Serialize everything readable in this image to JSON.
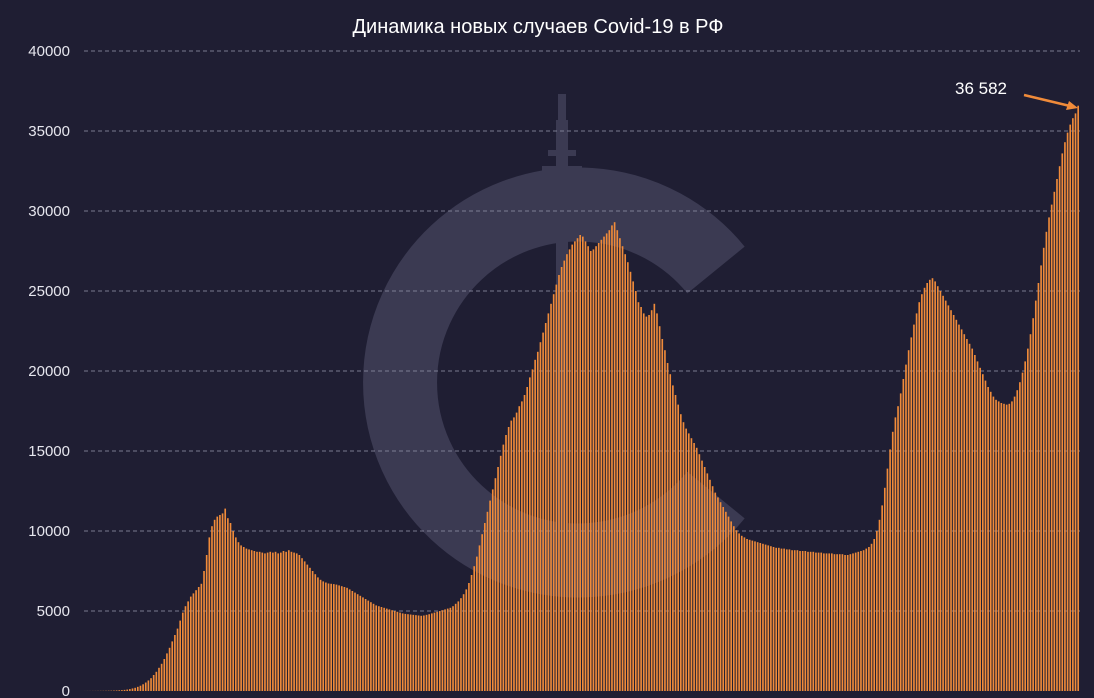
{
  "chart_data": {
    "type": "bar",
    "title": "Динамика новых случаев Covid-19 в РФ",
    "ylim": [
      0,
      40000
    ],
    "y_ticks": [
      "0",
      "5000",
      "10000",
      "15000",
      "20000",
      "25000",
      "30000",
      "35000",
      "40000"
    ],
    "grid": "horizontal-dashed",
    "annotation": {
      "label": "36 582",
      "value": 36582,
      "target": "last"
    },
    "colors": {
      "background": "#1f1e33",
      "bar": "#f08b3a",
      "grid": "#8a8aa0",
      "text": "#ffffff",
      "watermark": "#3b3a52"
    },
    "series": [
      {
        "values": [
          2,
          3,
          4,
          5,
          6,
          8,
          10,
          12,
          15,
          18,
          22,
          28,
          35,
          45,
          55,
          70,
          90,
          120,
          160,
          200,
          260,
          330,
          420,
          530,
          660,
          800,
          1000,
          1200,
          1450,
          1700,
          2000,
          2350,
          2700,
          3100,
          3500,
          3900,
          4400,
          4900,
          5300,
          5600,
          5900,
          6100,
          6300,
          6500,
          6700,
          7500,
          8500,
          9600,
          10300,
          10700,
          10900,
          11000,
          11100,
          11400,
          10800,
          10500,
          10000,
          9600,
          9300,
          9100,
          9000,
          8900,
          8850,
          8800,
          8750,
          8700,
          8700,
          8650,
          8600,
          8650,
          8700,
          8650,
          8700,
          8600,
          8650,
          8750,
          8700,
          8800,
          8700,
          8650,
          8600,
          8500,
          8300,
          8100,
          7900,
          7700,
          7500,
          7300,
          7100,
          6950,
          6850,
          6780,
          6720,
          6700,
          6680,
          6650,
          6600,
          6550,
          6500,
          6450,
          6350,
          6250,
          6150,
          6050,
          5950,
          5850,
          5750,
          5650,
          5550,
          5450,
          5350,
          5300,
          5250,
          5200,
          5150,
          5100,
          5050,
          5000,
          4950,
          4900,
          4850,
          4820,
          4800,
          4780,
          4760,
          4740,
          4720,
          4700,
          4720,
          4760,
          4800,
          4850,
          4900,
          4950,
          5000,
          5050,
          5100,
          5150,
          5200,
          5300,
          5450,
          5600,
          5800,
          6050,
          6350,
          6750,
          7250,
          7800,
          8400,
          9100,
          9800,
          10500,
          11200,
          11900,
          12600,
          13300,
          14000,
          14700,
          15400,
          16000,
          16500,
          16900,
          17100,
          17400,
          17800,
          18100,
          18500,
          19000,
          19600,
          20100,
          20700,
          21200,
          21800,
          22400,
          23000,
          23600,
          24200,
          24800,
          25400,
          26000,
          26500,
          26900,
          27300,
          27600,
          27900,
          28100,
          28300,
          28500,
          28400,
          28100,
          27800,
          27500,
          27600,
          27800,
          28000,
          28200,
          28400,
          28600,
          28800,
          29100,
          29300,
          28800,
          28300,
          27800,
          27300,
          26800,
          26200,
          25600,
          25000,
          24300,
          24000,
          23600,
          23400,
          23500,
          23800,
          24200,
          23600,
          22800,
          22000,
          21300,
          20500,
          19800,
          19100,
          18500,
          17900,
          17300,
          16800,
          16400,
          16100,
          15800,
          15500,
          15200,
          14800,
          14400,
          14000,
          13600,
          13200,
          12800,
          12400,
          12100,
          11800,
          11500,
          11200,
          10900,
          10600,
          10300,
          10050,
          9850,
          9700,
          9600,
          9500,
          9450,
          9400,
          9350,
          9300,
          9250,
          9200,
          9150,
          9100,
          9050,
          9000,
          8950,
          8950,
          8900,
          8900,
          8850,
          8850,
          8800,
          8800,
          8800,
          8750,
          8750,
          8750,
          8700,
          8700,
          8700,
          8650,
          8650,
          8650,
          8600,
          8600,
          8600,
          8600,
          8550,
          8550,
          8550,
          8550,
          8500,
          8500,
          8550,
          8600,
          8650,
          8700,
          8750,
          8800,
          8900,
          9000,
          9200,
          9500,
          10000,
          10700,
          11600,
          12700,
          13900,
          15100,
          16200,
          17100,
          17800,
          18600,
          19500,
          20400,
          21300,
          22100,
          22900,
          23600,
          24300,
          24800,
          25200,
          25500,
          25700,
          25800,
          25600,
          25300,
          25000,
          24700,
          24400,
          24100,
          23800,
          23500,
          23200,
          22900,
          22600,
          22300,
          22000,
          21700,
          21400,
          21000,
          20600,
          20200,
          19800,
          19400,
          19000,
          18700,
          18400,
          18200,
          18100,
          18000,
          17950,
          17900,
          17950,
          18100,
          18400,
          18800,
          19300,
          19900,
          20600,
          21400,
          22300,
          23300,
          24400,
          25500,
          26600,
          27700,
          28700,
          29600,
          30400,
          31200,
          32000,
          32800,
          33600,
          34300,
          34900,
          35400,
          35800,
          36100,
          36582
        ]
      }
    ]
  }
}
